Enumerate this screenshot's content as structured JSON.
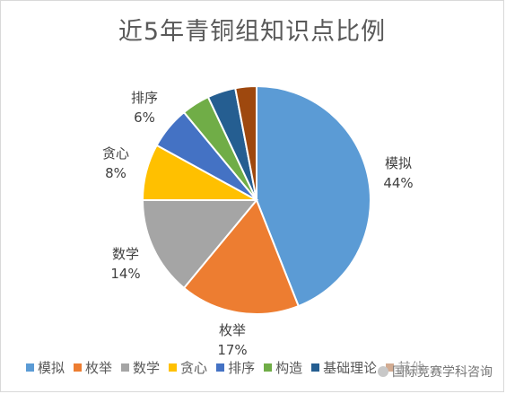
{
  "chart_data": {
    "type": "pie",
    "title": "近5年青铜组知识点比例",
    "categories": [
      "模拟",
      "枚举",
      "数学",
      "贪心",
      "排序",
      "构造",
      "基础理论",
      "其他"
    ],
    "values": [
      44,
      17,
      14,
      8,
      6,
      4,
      4,
      3
    ],
    "value_labels": [
      "44%",
      "17%",
      "14%",
      "8%",
      "6%",
      "",
      "",
      ""
    ],
    "colors": [
      "#5b9bd5",
      "#ed7d31",
      "#a5a5a5",
      "#ffc000",
      "#4472c4",
      "#70ad47",
      "#255e91",
      "#9e480e"
    ],
    "legend_position": "bottom",
    "labels_shown_for": [
      "模拟",
      "枚举",
      "数学",
      "贪心",
      "排序"
    ]
  },
  "legend": {
    "items": [
      "模拟",
      "枚举",
      "数学",
      "贪心",
      "排序",
      "构造",
      "基础理论",
      "其他"
    ]
  },
  "watermark": {
    "text": "国际竞赛学科咨询"
  }
}
